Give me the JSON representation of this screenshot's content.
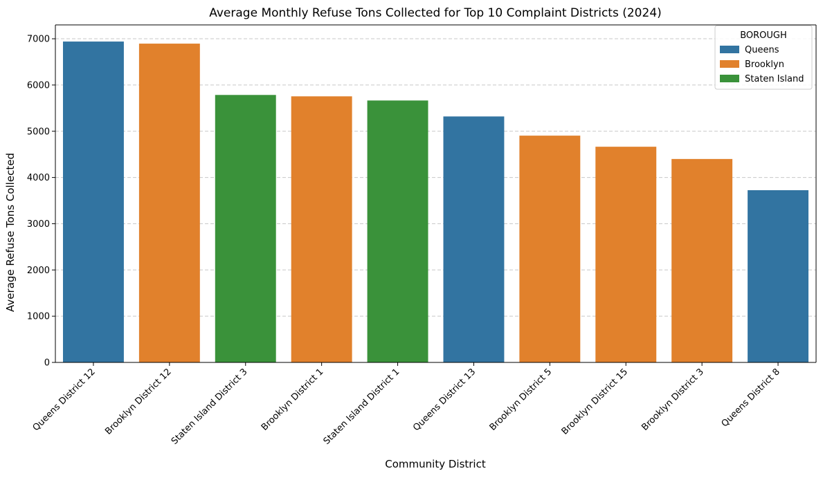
{
  "chart_data": {
    "type": "bar",
    "title": "Average Monthly Refuse Tons Collected for Top 10 Complaint Districts (2024)",
    "xlabel": "Community District",
    "ylabel": "Average Refuse Tons Collected",
    "ylim": [
      0,
      7300
    ],
    "yticks": [
      0,
      1000,
      2000,
      3000,
      4000,
      5000,
      6000,
      7000
    ],
    "grid": "y-dashed",
    "categories": [
      "Queens District 12",
      "Brooklyn District 12",
      "Staten Island District 3",
      "Brooklyn District 1",
      "Staten Island District 1",
      "Queens District 13",
      "Brooklyn District 5",
      "Brooklyn District 15",
      "Brooklyn District 3",
      "Queens District 8"
    ],
    "values": [
      6940,
      6895,
      5785,
      5755,
      5665,
      5320,
      4905,
      4665,
      4400,
      3725
    ],
    "groups": [
      "Queens",
      "Brooklyn",
      "Staten Island",
      "Brooklyn",
      "Staten Island",
      "Queens",
      "Brooklyn",
      "Brooklyn",
      "Brooklyn",
      "Queens"
    ],
    "legend": {
      "title": "BOROUGH",
      "placement": "top-right",
      "entries": [
        {
          "name": "Queens",
          "color": "#3274a1"
        },
        {
          "name": "Brooklyn",
          "color": "#e1812c"
        },
        {
          "name": "Staten Island",
          "color": "#3a923a"
        }
      ]
    }
  }
}
